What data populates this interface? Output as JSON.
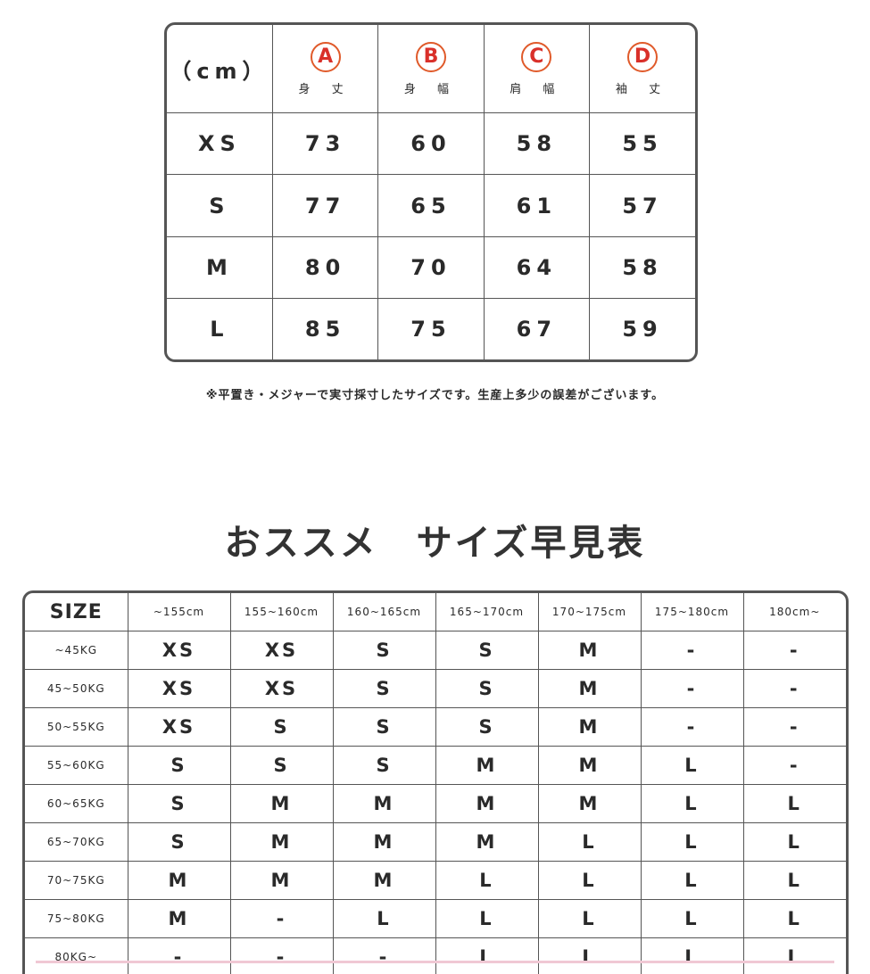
{
  "measure_table": {
    "unit_label": "（cm）",
    "columns": [
      {
        "letter": "A",
        "label": "身 丈"
      },
      {
        "letter": "B",
        "label": "身 幅"
      },
      {
        "letter": "C",
        "label": "肩 幅"
      },
      {
        "letter": "D",
        "label": "袖 丈"
      }
    ],
    "rows": [
      {
        "size": "XS",
        "values": [
          "73",
          "60",
          "58",
          "55"
        ]
      },
      {
        "size": "S",
        "values": [
          "77",
          "65",
          "61",
          "57"
        ]
      },
      {
        "size": "M",
        "values": [
          "80",
          "70",
          "64",
          "58"
        ]
      },
      {
        "size": "L",
        "values": [
          "85",
          "75",
          "67",
          "59"
        ]
      }
    ],
    "accent_color": "#d9302a"
  },
  "note": "※平置き・メジャーで実寸採寸したサイズです。生産上多少の誤差がございます。",
  "title": "おススメ　サイズ早見表",
  "recommend_table": {
    "corner": "SIZE",
    "heights": [
      "~155cm",
      "155~160cm",
      "160~165cm",
      "165~170cm",
      "170~175cm",
      "175~180cm",
      "180cm~"
    ],
    "rows": [
      {
        "weight": "~45KG",
        "values": [
          "XS",
          "XS",
          "S",
          "S",
          "M",
          "-",
          "-"
        ]
      },
      {
        "weight": "45~50KG",
        "values": [
          "XS",
          "XS",
          "S",
          "S",
          "M",
          "-",
          "-"
        ]
      },
      {
        "weight": "50~55KG",
        "values": [
          "XS",
          "S",
          "S",
          "S",
          "M",
          "-",
          "-"
        ]
      },
      {
        "weight": "55~60KG",
        "values": [
          "S",
          "S",
          "S",
          "M",
          "M",
          "L",
          "-"
        ]
      },
      {
        "weight": "60~65KG",
        "values": [
          "S",
          "M",
          "M",
          "M",
          "M",
          "L",
          "L"
        ]
      },
      {
        "weight": "65~70KG",
        "values": [
          "S",
          "M",
          "M",
          "M",
          "L",
          "L",
          "L"
        ]
      },
      {
        "weight": "70~75KG",
        "values": [
          "M",
          "M",
          "M",
          "L",
          "L",
          "L",
          "L"
        ]
      },
      {
        "weight": "75~80KG",
        "values": [
          "M",
          "-",
          "L",
          "L",
          "L",
          "L",
          "L"
        ]
      },
      {
        "weight": "80KG~",
        "values": [
          "-",
          "-",
          "-",
          "L",
          "L",
          "L",
          "L"
        ]
      }
    ]
  }
}
